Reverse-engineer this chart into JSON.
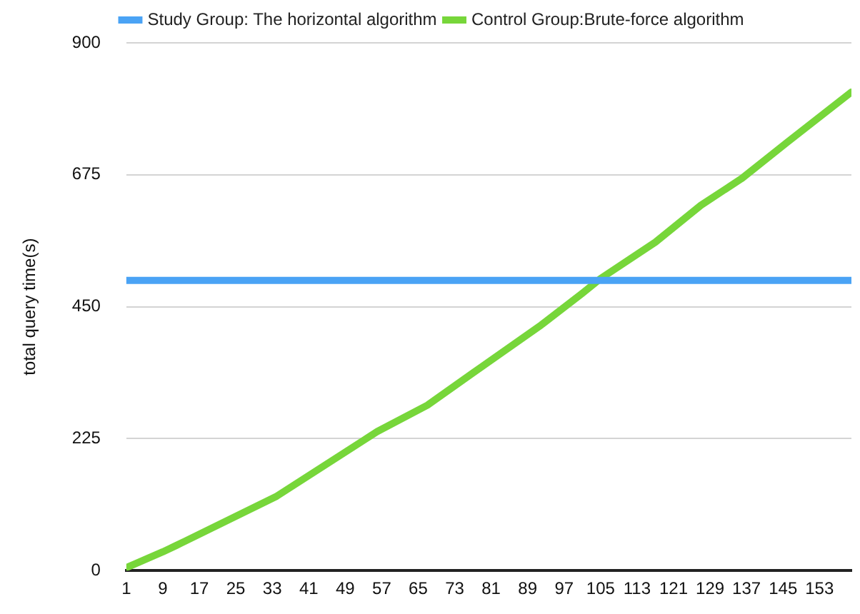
{
  "chart_data": {
    "type": "line",
    "ylabel": "total query time(s)",
    "xlim": [
      1,
      160
    ],
    "xticks": [
      1,
      9,
      17,
      25,
      33,
      41,
      49,
      57,
      65,
      73,
      81,
      89,
      97,
      105,
      113,
      121,
      129,
      137,
      145,
      153
    ],
    "ylim": [
      0,
      900
    ],
    "yticks": [
      0,
      225,
      450,
      675,
      900
    ],
    "grid": "y",
    "legend": "top",
    "marker": "none",
    "line_style": "solid",
    "series": [
      {
        "name": "Study Group: The horizontal algorithm",
        "color": "#4aa3f5",
        "x": [
          1,
          160
        ],
        "values": [
          495,
          495
        ]
      },
      {
        "name": "Control Group:Brute-force algorithm",
        "color": "#77d63a",
        "x": [
          1,
          9,
          12,
          34,
          56,
          67,
          77,
          92,
          101,
          105,
          117,
          127,
          136,
          146,
          160
        ],
        "values": [
          5,
          32,
          43,
          127,
          237,
          282,
          337,
          419,
          473,
          498,
          560,
          623,
          669,
          731,
          816
        ]
      }
    ]
  }
}
